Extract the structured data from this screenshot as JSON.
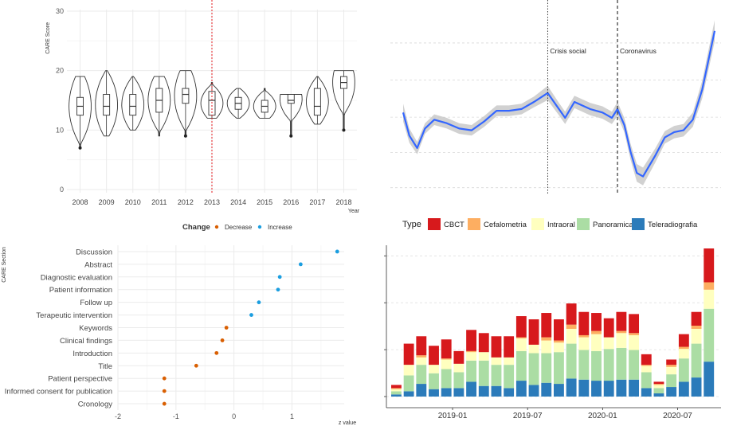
{
  "chart_data": [
    {
      "type": "violin",
      "ylabel": "CARE Score",
      "xlabel": "Year",
      "ylim": [
        0,
        30
      ],
      "y_ticks": [
        "0",
        "10",
        "20",
        "30"
      ],
      "categories": [
        "2008",
        "2009",
        "2010",
        "2011",
        "2012",
        "2013",
        "2014",
        "2015",
        "2016",
        "2017",
        "2018"
      ],
      "stats": [
        {
          "min": 7,
          "q1": 12.5,
          "median": 14,
          "q3": 15.5,
          "max": 19,
          "outlier": 7
        },
        {
          "min": 9,
          "q1": 12.5,
          "median": 14,
          "q3": 16,
          "max": 20,
          "outlier": null
        },
        {
          "min": 10,
          "q1": 12.5,
          "median": 14,
          "q3": 16,
          "max": 19,
          "outlier": null
        },
        {
          "min": 9,
          "q1": 13,
          "median": 15,
          "q3": 17,
          "max": 19,
          "outlier": null
        },
        {
          "min": 9,
          "q1": 14.5,
          "median": 16,
          "q3": 17,
          "max": 20,
          "outlier": 9
        },
        {
          "min": 12,
          "q1": 12.5,
          "median": 15,
          "q3": 16.5,
          "max": 18,
          "outlier": null
        },
        {
          "min": 12,
          "q1": 13.5,
          "median": 14.5,
          "q3": 15.5,
          "max": 17,
          "outlier": null
        },
        {
          "min": 12,
          "q1": 13,
          "median": 14,
          "q3": 15,
          "max": 17,
          "outlier": null
        },
        {
          "min": 9,
          "q1": 14.5,
          "median": 15,
          "q3": 16,
          "max": 16,
          "outlier": 9
        },
        {
          "min": 11,
          "q1": 12.5,
          "median": 14,
          "q3": 17,
          "max": 19,
          "outlier": null
        },
        {
          "min": 10,
          "q1": 17,
          "median": 18,
          "q3": 19,
          "max": 20,
          "outlier": 10
        }
      ],
      "reference_line": {
        "x": "2013",
        "color": "#e41a1c"
      }
    },
    {
      "type": "line",
      "annotations": [
        {
          "label": "Crisis social",
          "x": 0.464
        },
        {
          "label": "Coronavirus",
          "x": 0.688
        }
      ],
      "series": [
        {
          "color": "#3366ff",
          "x": [
            0,
            0.02,
            0.045,
            0.07,
            0.1,
            0.14,
            0.18,
            0.22,
            0.26,
            0.3,
            0.34,
            0.38,
            0.42,
            0.464,
            0.5,
            0.52,
            0.55,
            0.6,
            0.64,
            0.67,
            0.688,
            0.71,
            0.73,
            0.75,
            0.77,
            0.79,
            0.81,
            0.84,
            0.87,
            0.9,
            0.93,
            0.96,
            1.0
          ],
          "y": [
            0.58,
            0.71,
            0.78,
            0.67,
            0.62,
            0.64,
            0.67,
            0.68,
            0.63,
            0.57,
            0.57,
            0.56,
            0.52,
            0.47,
            0.56,
            0.61,
            0.52,
            0.56,
            0.58,
            0.61,
            0.56,
            0.65,
            0.8,
            0.92,
            0.94,
            0.88,
            0.82,
            0.72,
            0.69,
            0.68,
            0.62,
            0.45,
            0.12
          ],
          "band": [
            0.05,
            0.04,
            0.035,
            0.03,
            0.03,
            0.03,
            0.03,
            0.03,
            0.03,
            0.03,
            0.03,
            0.03,
            0.03,
            0.04,
            0.035,
            0.035,
            0.035,
            0.035,
            0.035,
            0.035,
            0.04,
            0.04,
            0.045,
            0.05,
            0.05,
            0.045,
            0.04,
            0.035,
            0.035,
            0.035,
            0.04,
            0.05,
            0.06
          ]
        }
      ]
    },
    {
      "type": "scatter",
      "ylabel": "CARE Section",
      "xlabel": "z value",
      "xlim": [
        -2,
        1.9
      ],
      "x_ticks": [
        "-2",
        "-1",
        "0",
        "1"
      ],
      "legend_title": "Change",
      "legend": [
        {
          "label": "Decrease",
          "color": "#d95f02"
        },
        {
          "label": "Increase",
          "color": "#1b9ee0"
        }
      ],
      "points": [
        {
          "label": "Discussion",
          "x": 1.78,
          "change": "Increase"
        },
        {
          "label": "Abstract",
          "x": 1.15,
          "change": "Increase"
        },
        {
          "label": "Diagnostic evaluation",
          "x": 0.79,
          "change": "Increase"
        },
        {
          "label": "Patient information",
          "x": 0.76,
          "change": "Increase"
        },
        {
          "label": "Follow up",
          "x": 0.43,
          "change": "Increase"
        },
        {
          "label": "Terapeutic intervention",
          "x": 0.3,
          "change": "Increase"
        },
        {
          "label": "Keywords",
          "x": -0.13,
          "change": "Decrease"
        },
        {
          "label": "Clinical findings",
          "x": -0.2,
          "change": "Decrease"
        },
        {
          "label": "Introduction",
          "x": -0.3,
          "change": "Decrease"
        },
        {
          "label": "Title",
          "x": -0.65,
          "change": "Decrease"
        },
        {
          "label": "Patient perspective",
          "x": -1.2,
          "change": "Decrease"
        },
        {
          "label": "Informed consent for publication",
          "x": -1.2,
          "change": "Decrease"
        },
        {
          "label": "Cronology",
          "x": -1.2,
          "change": "Decrease"
        }
      ]
    },
    {
      "type": "bar",
      "stacked": true,
      "legend_title": "Type",
      "x_ticks": [
        {
          "label": "2019-01",
          "index": 4.5
        },
        {
          "label": "2019-07",
          "index": 10.5
        },
        {
          "label": "2020-01",
          "index": 16.5
        },
        {
          "label": "2020-07",
          "index": 22.5
        }
      ],
      "series": [
        {
          "name": "Teleradiografia",
          "color": "#2b7bba",
          "values": [
            2,
            5,
            12,
            7,
            8,
            8,
            14,
            10,
            10,
            8,
            15,
            11,
            13,
            12,
            17,
            16,
            15,
            15,
            16,
            16,
            8,
            3,
            9,
            14,
            18,
            33
          ]
        },
        {
          "name": "Panoramica",
          "color": "#abdda4",
          "values": [
            3,
            15,
            18,
            15,
            18,
            15,
            20,
            24,
            20,
            22,
            28,
            30,
            28,
            30,
            33,
            28,
            28,
            30,
            30,
            28,
            15,
            5,
            12,
            22,
            32,
            50
          ]
        },
        {
          "name": "Intraoral",
          "color": "#ffffbf",
          "values": [
            2,
            10,
            7,
            8,
            9,
            8,
            8,
            8,
            7,
            7,
            12,
            8,
            12,
            9,
            14,
            12,
            16,
            11,
            14,
            14,
            6,
            3,
            7,
            9,
            14,
            18
          ]
        },
        {
          "name": "Cefalometria",
          "color": "#fdae61",
          "values": [
            1,
            0,
            2,
            0,
            1,
            0,
            1,
            0,
            0,
            0,
            1,
            0,
            3,
            2,
            4,
            2,
            3,
            0,
            2,
            2,
            1,
            1,
            2,
            2,
            3,
            7
          ]
        },
        {
          "name": "CBCT",
          "color": "#d7191c",
          "values": [
            3,
            20,
            18,
            18,
            18,
            12,
            20,
            18,
            20,
            20,
            20,
            24,
            23,
            20,
            20,
            22,
            17,
            18,
            18,
            18,
            10,
            2,
            5,
            12,
            13,
            32
          ]
        }
      ]
    }
  ]
}
